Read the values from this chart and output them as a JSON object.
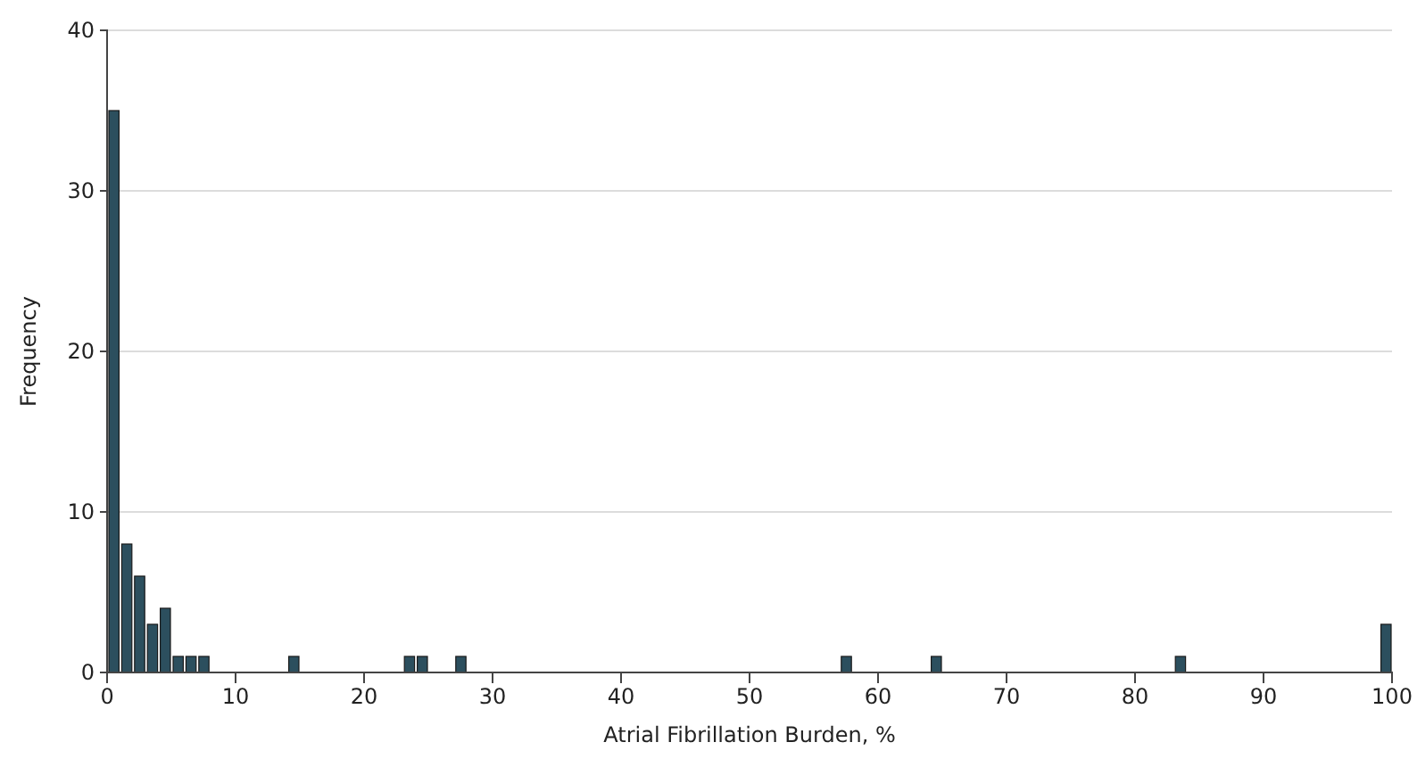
{
  "chart_data": {
    "type": "histogram",
    "xlabel": "Atrial Fibrillation Burden, %",
    "ylabel": "Frequency",
    "bins": [
      0,
      1,
      2,
      3,
      4,
      5,
      6,
      7,
      8,
      9,
      10,
      11,
      12,
      13,
      14,
      15,
      16,
      17,
      18,
      19,
      20,
      21,
      22,
      23,
      24,
      25,
      26,
      27,
      28,
      29,
      30,
      31,
      32,
      33,
      34,
      35,
      36,
      37,
      38,
      39,
      40,
      41,
      42,
      43,
      44,
      45,
      46,
      47,
      48,
      49,
      50,
      51,
      52,
      53,
      54,
      55,
      56,
      57,
      58,
      59,
      60,
      61,
      62,
      63,
      64,
      65,
      66,
      67,
      68,
      69,
      70,
      71,
      72,
      73,
      74,
      75,
      76,
      77,
      78,
      79,
      80,
      81,
      82,
      83,
      84,
      85,
      86,
      87,
      88,
      89,
      90,
      91,
      92,
      93,
      94,
      95,
      96,
      97,
      98,
      99,
      100
    ],
    "values": [
      35,
      8,
      6,
      3,
      4,
      1,
      1,
      1,
      0,
      0,
      0,
      0,
      0,
      0,
      1,
      0,
      0,
      0,
      0,
      0,
      0,
      0,
      0,
      1,
      1,
      0,
      0,
      1,
      0,
      0,
      0,
      0,
      0,
      0,
      0,
      0,
      0,
      0,
      0,
      0,
      0,
      0,
      0,
      0,
      0,
      0,
      0,
      0,
      0,
      0,
      0,
      0,
      0,
      0,
      0,
      0,
      0,
      1,
      0,
      0,
      0,
      0,
      0,
      0,
      1,
      0,
      0,
      0,
      0,
      0,
      0,
      0,
      0,
      0,
      0,
      0,
      0,
      0,
      0,
      0,
      0,
      0,
      0,
      1,
      0,
      0,
      0,
      0,
      0,
      0,
      0,
      0,
      0,
      0,
      0,
      0,
      0,
      0,
      0,
      3
    ],
    "color": "#2c4f5e",
    "xlim": [
      0,
      100
    ],
    "xticks": [
      0,
      10,
      20,
      30,
      40,
      50,
      60,
      70,
      80,
      90,
      100
    ],
    "ylim": [
      0,
      40
    ],
    "yticks": [
      0,
      10,
      20,
      30,
      40
    ],
    "grid": "y"
  }
}
